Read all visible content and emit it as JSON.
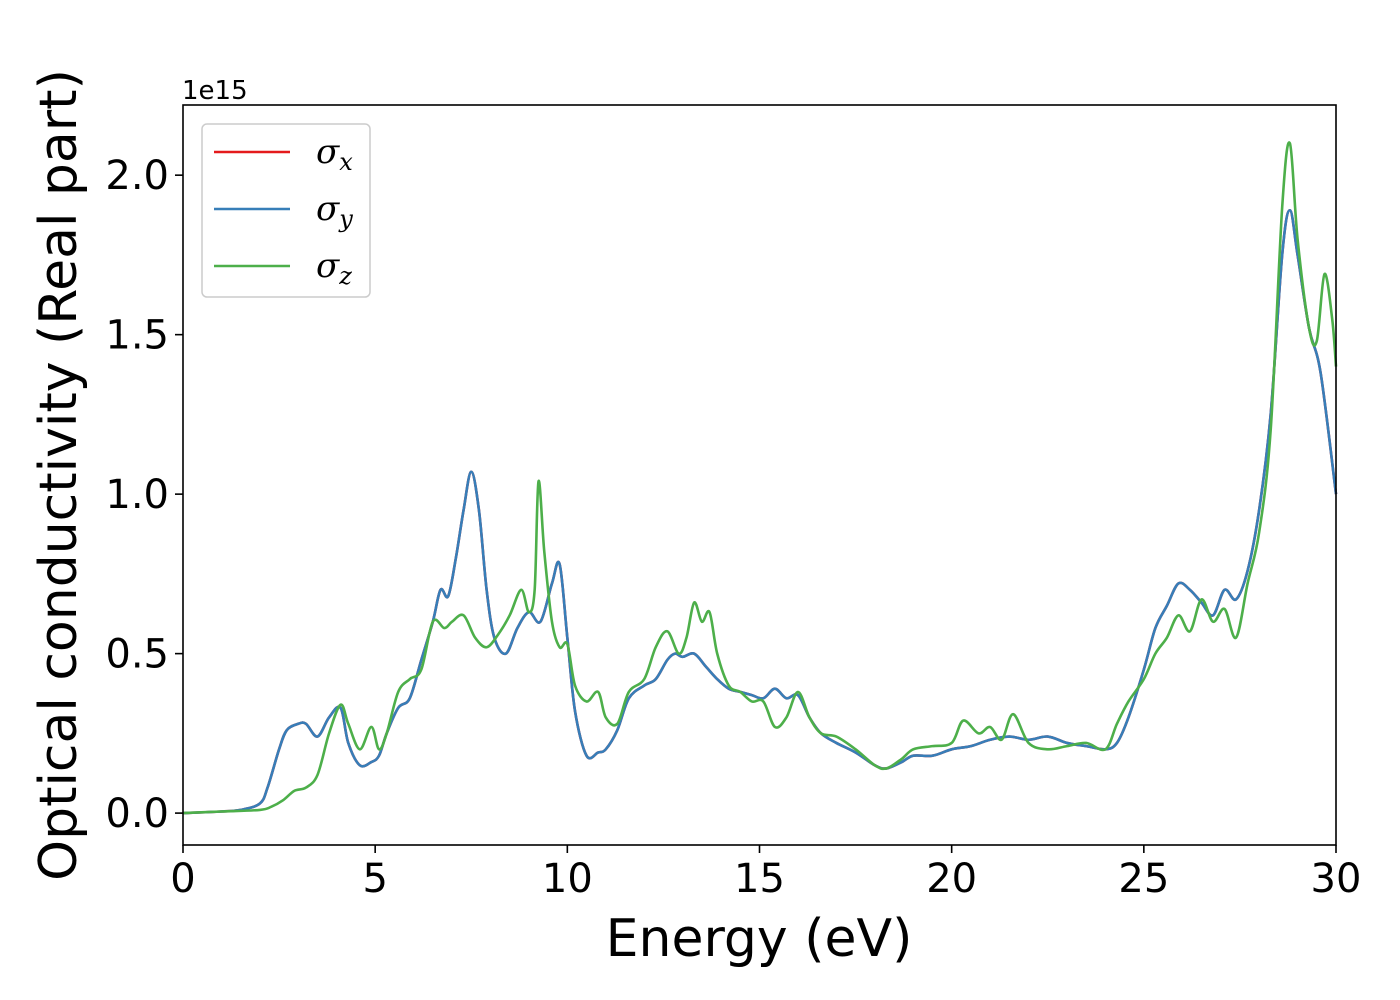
{
  "chart_data": {
    "type": "line",
    "xlabel": "Energy (eV)",
    "ylabel": "Optical conductivity (Real part)",
    "y_offset_label": "1e15",
    "xlim": [
      0,
      30
    ],
    "ylim": [
      -0.1,
      2.22
    ],
    "x_ticks": [
      0,
      5,
      10,
      15,
      20,
      25,
      30
    ],
    "x_tick_labels": [
      "0",
      "5",
      "10",
      "15",
      "20",
      "25",
      "30"
    ],
    "y_ticks": [
      0.0,
      0.5,
      1.0,
      1.5,
      2.0
    ],
    "y_tick_labels": [
      "0.0",
      "0.5",
      "1.0",
      "1.5",
      "2.0"
    ],
    "grid": false,
    "legend_position": "top-left",
    "series": [
      {
        "name": "σx",
        "legend_main": "σ",
        "legend_sub": "x",
        "color": "#e41a1c",
        "x": [
          0,
          1,
          1.5,
          2,
          2.2,
          2.5,
          2.7,
          3,
          3.2,
          3.5,
          3.8,
          4.1,
          4.3,
          4.6,
          4.9,
          5.1,
          5.3,
          5.6,
          5.9,
          6.2,
          6.5,
          6.7,
          6.9,
          7.1,
          7.3,
          7.5,
          7.7,
          7.9,
          8.1,
          8.4,
          8.7,
          9,
          9.3,
          9.6,
          9.8,
          10,
          10.2,
          10.5,
          10.8,
          11,
          11.3,
          11.6,
          12,
          12.3,
          12.6,
          12.8,
          13,
          13.3,
          13.6,
          13.9,
          14.2,
          14.5,
          14.8,
          15.1,
          15.4,
          15.7,
          16,
          16.3,
          16.6,
          17,
          17.5,
          18,
          18.3,
          18.7,
          19,
          19.5,
          20,
          20.5,
          21,
          21.5,
          22,
          22.5,
          23,
          23.5,
          24,
          24.3,
          24.6,
          25,
          25.3,
          25.6,
          25.9,
          26.2,
          26.5,
          26.8,
          27.1,
          27.4,
          27.7,
          28,
          28.3,
          28.6,
          28.8,
          29,
          29.3,
          29.6,
          30
        ],
        "values": [
          0,
          0.005,
          0.01,
          0.03,
          0.08,
          0.2,
          0.26,
          0.28,
          0.28,
          0.24,
          0.3,
          0.33,
          0.22,
          0.15,
          0.16,
          0.18,
          0.25,
          0.33,
          0.36,
          0.48,
          0.6,
          0.7,
          0.68,
          0.8,
          0.95,
          1.07,
          0.95,
          0.7,
          0.55,
          0.5,
          0.58,
          0.63,
          0.6,
          0.72,
          0.78,
          0.55,
          0.32,
          0.18,
          0.19,
          0.2,
          0.26,
          0.36,
          0.4,
          0.42,
          0.48,
          0.5,
          0.49,
          0.5,
          0.46,
          0.42,
          0.39,
          0.38,
          0.37,
          0.36,
          0.39,
          0.36,
          0.37,
          0.3,
          0.25,
          0.22,
          0.19,
          0.15,
          0.14,
          0.16,
          0.18,
          0.18,
          0.2,
          0.21,
          0.23,
          0.24,
          0.23,
          0.24,
          0.22,
          0.21,
          0.2,
          0.22,
          0.3,
          0.45,
          0.58,
          0.65,
          0.72,
          0.7,
          0.66,
          0.62,
          0.7,
          0.67,
          0.76,
          0.95,
          1.25,
          1.75,
          1.89,
          1.75,
          1.52,
          1.38,
          1.0
        ]
      },
      {
        "name": "σy",
        "legend_main": "σ",
        "legend_sub": "y",
        "color": "#377eb8",
        "x": [
          0,
          1,
          1.5,
          2,
          2.2,
          2.5,
          2.7,
          3,
          3.2,
          3.5,
          3.8,
          4.1,
          4.3,
          4.6,
          4.9,
          5.1,
          5.3,
          5.6,
          5.9,
          6.2,
          6.5,
          6.7,
          6.9,
          7.1,
          7.3,
          7.5,
          7.7,
          7.9,
          8.1,
          8.4,
          8.7,
          9,
          9.3,
          9.6,
          9.8,
          10,
          10.2,
          10.5,
          10.8,
          11,
          11.3,
          11.6,
          12,
          12.3,
          12.6,
          12.8,
          13,
          13.3,
          13.6,
          13.9,
          14.2,
          14.5,
          14.8,
          15.1,
          15.4,
          15.7,
          16,
          16.3,
          16.6,
          17,
          17.5,
          18,
          18.3,
          18.7,
          19,
          19.5,
          20,
          20.5,
          21,
          21.5,
          22,
          22.5,
          23,
          23.5,
          24,
          24.3,
          24.6,
          25,
          25.3,
          25.6,
          25.9,
          26.2,
          26.5,
          26.8,
          27.1,
          27.4,
          27.7,
          28,
          28.3,
          28.6,
          28.8,
          29,
          29.3,
          29.6,
          30
        ],
        "values": [
          0,
          0.005,
          0.01,
          0.03,
          0.08,
          0.2,
          0.26,
          0.28,
          0.28,
          0.24,
          0.3,
          0.33,
          0.22,
          0.15,
          0.16,
          0.18,
          0.25,
          0.33,
          0.36,
          0.48,
          0.6,
          0.7,
          0.68,
          0.8,
          0.95,
          1.07,
          0.95,
          0.7,
          0.55,
          0.5,
          0.58,
          0.63,
          0.6,
          0.72,
          0.78,
          0.55,
          0.32,
          0.18,
          0.19,
          0.2,
          0.26,
          0.36,
          0.4,
          0.42,
          0.48,
          0.5,
          0.49,
          0.5,
          0.46,
          0.42,
          0.39,
          0.38,
          0.37,
          0.36,
          0.39,
          0.36,
          0.37,
          0.3,
          0.25,
          0.22,
          0.19,
          0.15,
          0.14,
          0.16,
          0.18,
          0.18,
          0.2,
          0.21,
          0.23,
          0.24,
          0.23,
          0.24,
          0.22,
          0.21,
          0.2,
          0.22,
          0.3,
          0.45,
          0.58,
          0.65,
          0.72,
          0.7,
          0.66,
          0.62,
          0.7,
          0.67,
          0.76,
          0.95,
          1.25,
          1.75,
          1.89,
          1.75,
          1.52,
          1.38,
          1.0
        ]
      },
      {
        "name": "σz",
        "legend_main": "σ",
        "legend_sub": "z",
        "color": "#4daf4a",
        "x": [
          0,
          1,
          2,
          2.3,
          2.6,
          2.9,
          3.2,
          3.5,
          3.8,
          4.1,
          4.3,
          4.6,
          4.9,
          5.1,
          5.3,
          5.6,
          5.9,
          6.2,
          6.5,
          6.8,
          7,
          7.3,
          7.6,
          7.9,
          8.2,
          8.5,
          8.8,
          9,
          9.15,
          9.25,
          9.4,
          9.6,
          9.8,
          10,
          10.2,
          10.5,
          10.8,
          11,
          11.3,
          11.6,
          12,
          12.3,
          12.6,
          12.9,
          13.1,
          13.3,
          13.5,
          13.7,
          13.9,
          14.2,
          14.5,
          14.8,
          15.1,
          15.4,
          15.7,
          16,
          16.3,
          16.6,
          17,
          17.5,
          18,
          18.3,
          18.7,
          19,
          19.5,
          20,
          20.3,
          20.7,
          21,
          21.3,
          21.6,
          22,
          22.5,
          23,
          23.5,
          24,
          24.3,
          24.6,
          25,
          25.3,
          25.6,
          25.9,
          26.2,
          26.5,
          26.8,
          27.1,
          27.4,
          27.7,
          28,
          28.3,
          28.6,
          28.8,
          29,
          29.3,
          29.5,
          29.7,
          29.9,
          30
        ],
        "values": [
          0,
          0.005,
          0.01,
          0.02,
          0.04,
          0.07,
          0.08,
          0.12,
          0.25,
          0.34,
          0.28,
          0.2,
          0.27,
          0.2,
          0.25,
          0.38,
          0.42,
          0.45,
          0.6,
          0.58,
          0.6,
          0.62,
          0.55,
          0.52,
          0.56,
          0.62,
          0.7,
          0.63,
          0.7,
          1.04,
          0.82,
          0.6,
          0.52,
          0.53,
          0.4,
          0.35,
          0.38,
          0.3,
          0.28,
          0.38,
          0.42,
          0.52,
          0.57,
          0.5,
          0.55,
          0.66,
          0.6,
          0.63,
          0.5,
          0.4,
          0.38,
          0.35,
          0.35,
          0.27,
          0.3,
          0.38,
          0.3,
          0.25,
          0.24,
          0.2,
          0.15,
          0.14,
          0.17,
          0.2,
          0.21,
          0.22,
          0.29,
          0.25,
          0.27,
          0.23,
          0.31,
          0.22,
          0.2,
          0.21,
          0.22,
          0.2,
          0.28,
          0.35,
          0.42,
          0.5,
          0.55,
          0.62,
          0.57,
          0.67,
          0.6,
          0.64,
          0.55,
          0.72,
          0.88,
          1.2,
          1.9,
          2.1,
          1.8,
          1.52,
          1.48,
          1.69,
          1.55,
          1.4
        ]
      }
    ]
  }
}
